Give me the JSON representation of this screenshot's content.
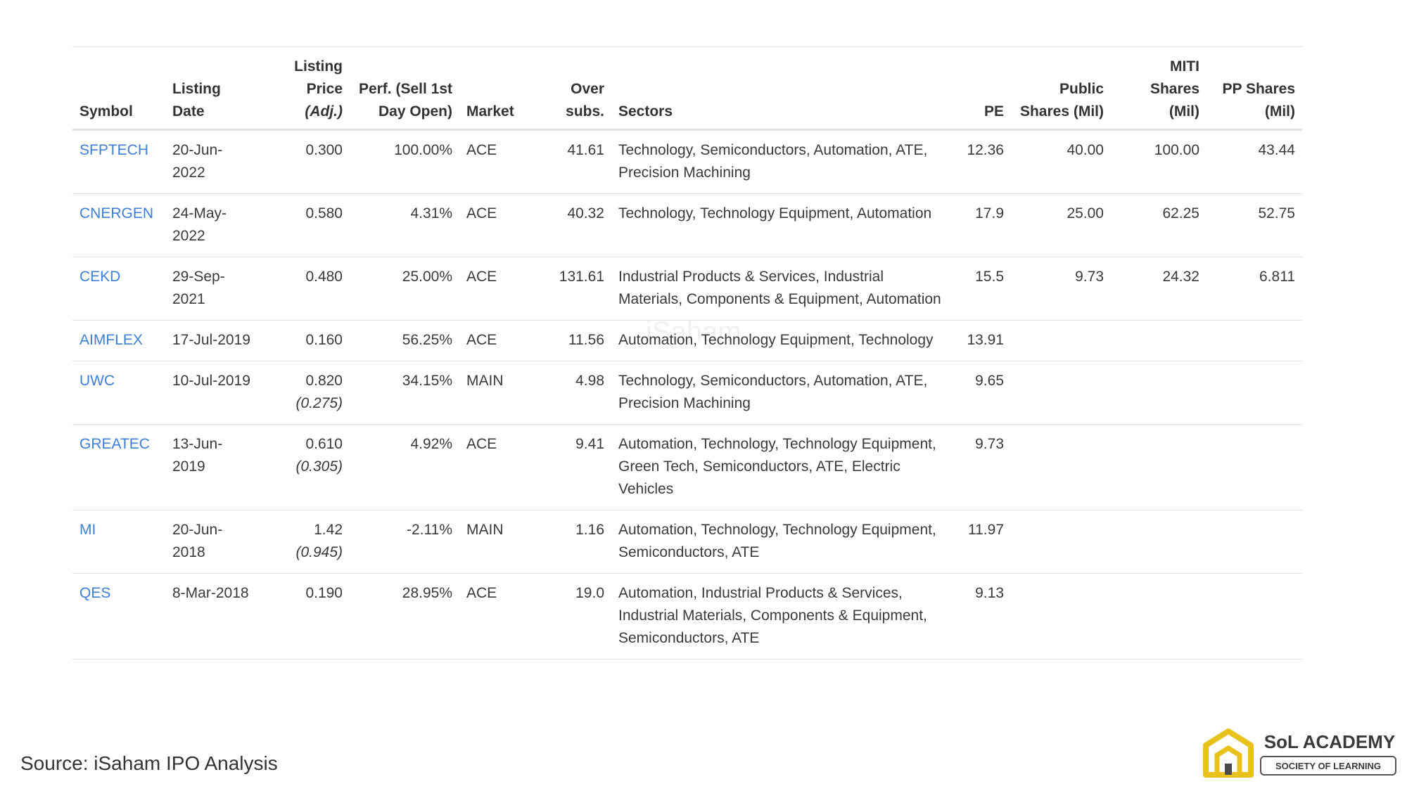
{
  "table": {
    "headers": [
      "Symbol",
      "Listing Date",
      "Listing Price",
      "Perf. (Sell 1st Day Open)",
      "Market",
      "Over subs.",
      "Sectors",
      "PE",
      "Public Shares (Mil)",
      "MITI Shares (Mil)",
      "PP Shares (Mil)"
    ],
    "header_note": "(Adj.)",
    "rows": [
      [
        "SFPTECH",
        "20-Jun-2022",
        {
          "price": "0.300"
        },
        "100.00%",
        "ACE",
        "41.61",
        "Technology, Semiconductors, Automation, ATE, Precision Machining",
        "12.36",
        "40.00",
        "100.00",
        "43.44"
      ],
      [
        "CNERGEN",
        "24-May-2022",
        {
          "price": "0.580"
        },
        "4.31%",
        "ACE",
        "40.32",
        "Technology, Technology Equipment, Automation",
        "17.9",
        "25.00",
        "62.25",
        "52.75"
      ],
      [
        "CEKD",
        "29-Sep-2021",
        {
          "price": "0.480"
        },
        "25.00%",
        "ACE",
        "131.61",
        "Industrial Products & Services, Industrial Materials, Components & Equipment, Automation",
        "15.5",
        "9.73",
        "24.32",
        "6.811"
      ],
      [
        "AIMFLEX",
        "17-Jul-2019",
        {
          "price": "0.160"
        },
        "56.25%",
        "ACE",
        "11.56",
        "Automation, Technology Equipment, Technology",
        "13.91"
      ],
      [
        "UWC",
        "10-Jul-2019",
        {
          "price": "0.820",
          "adjusted": "(0.275)"
        },
        "34.15%",
        "MAIN",
        "4.98",
        "Technology, Semiconductors, Automation, ATE, Precision Machining",
        "9.65"
      ],
      [
        "GREATEC",
        "13-Jun-2019",
        {
          "price": "0.610",
          "adjusted": "(0.305)"
        },
        "4.92%",
        "ACE",
        "9.41",
        "Automation, Technology, Technology Equipment, Green Tech, Semiconductors, ATE, Electric Vehicles",
        "9.73"
      ],
      [
        "MI",
        "20-Jun-2018",
        {
          "price": "1.42",
          "adjusted": "(0.945)"
        },
        "-2.11%",
        "MAIN",
        "1.16",
        "Automation, Technology, Technology Equipment, Semiconductors, ATE",
        "11.97"
      ],
      [
        "QES",
        "8-Mar-2018",
        {
          "price": "0.190"
        },
        "28.95%",
        "ACE",
        "19.0",
        "Automation, Industrial Products & Services, Industrial Materials, Components & Equipment, Semiconductors, ATE",
        "9.13"
      ]
    ]
  },
  "watermark": "iSaham",
  "source": "Source: iSaham IPO Analysis",
  "logo": {
    "title": "SoL ACADEMY",
    "subtitle": "SOCIETY OF LEARNING"
  }
}
